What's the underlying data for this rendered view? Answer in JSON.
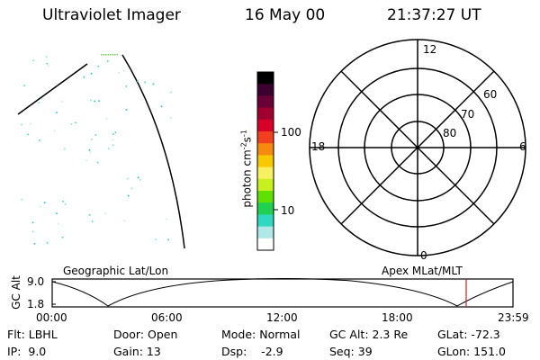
{
  "header": {
    "instrument": "Ultraviolet Imager",
    "date": "16 May 00",
    "time": "21:37:27 UT"
  },
  "colorbar": {
    "label_main": "photon cm",
    "label_exp1": "-2",
    "label_mid": "s",
    "label_exp2": "-1",
    "ticks": [
      "100",
      "10"
    ],
    "colors": [
      "#000000",
      "#3a0030",
      "#6a0038",
      "#a00030",
      "#d6002a",
      "#f04020",
      "#f58a10",
      "#f8c800",
      "#f8f060",
      "#c8f020",
      "#60e000",
      "#20d050",
      "#30d8c0",
      "#b0e8e8",
      "#ffffff"
    ]
  },
  "polar": {
    "mlt_labels": {
      "top": "12",
      "left": "18",
      "right": "6",
      "bottom": "0"
    },
    "lat_labels": [
      "60",
      "70",
      "80"
    ]
  },
  "map_labels": {
    "left": "Geographic Lat/Lon",
    "right": "Apex MLat/MLT"
  },
  "altitude_plot": {
    "ylabel": "GC Alt",
    "ymax": "9.0",
    "ymin": "1.8",
    "time_labels": [
      "00:00",
      "06:00",
      "12:00",
      "18:00",
      "23:59"
    ],
    "current_time_color": "#cc2020"
  },
  "info": {
    "filter": "Flt: LBHL",
    "ip": "IP:  9.0",
    "door": "Door: Open",
    "gain": "Gain: 13",
    "mode": "Mode: Normal",
    "dsp": "Dsp:    -2.9",
    "gc_alt": "GC Alt: 2.3 Re",
    "seq": "Seq: 39",
    "glat": "GLat: -72.3",
    "glon": "GLon: 151.0"
  }
}
